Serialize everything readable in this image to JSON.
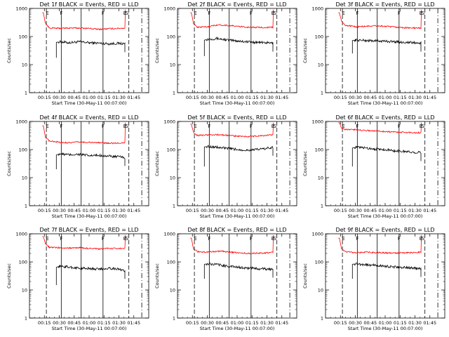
{
  "figure": {
    "x_tick_labels": [
      "00:15",
      "00:30",
      "00:45",
      "01:00",
      "01:15",
      "01:30",
      "01:45"
    ],
    "y_tick_labels": [
      "1",
      "10",
      "100",
      "1000"
    ],
    "ylabel": "Counts/sec",
    "xlabel": "Start Time (30-May-11 00:07:00)",
    "colors": {
      "events": "#000000",
      "lld": "#ff0000",
      "axes": "#000000",
      "background": "#ffffff"
    }
  },
  "chart_data": [
    {
      "type": "line",
      "title": "Det 1f BLACK = Events, RED = LLD",
      "xlabel": "Start Time (30-May-11 00:07:00)",
      "ylabel": "Counts/sec",
      "yscale": "log",
      "ylim": [
        1,
        1000
      ],
      "events_start": 27,
      "lld_start": 13,
      "end": 96,
      "series": [
        {
          "name": "Events",
          "color": "#000000",
          "x": [
            20,
            25,
            30,
            40,
            50,
            60,
            70,
            80,
            90,
            95
          ],
          "y": [
            35,
            60,
            65,
            60,
            65,
            60,
            58,
            55,
            57,
            55
          ]
        },
        {
          "name": "LLD",
          "color": "#ff0000",
          "x": [
            14,
            16,
            20,
            30,
            40,
            50,
            60,
            70,
            80,
            90,
            95
          ],
          "y": [
            700,
            300,
            200,
            195,
            200,
            200,
            195,
            180,
            190,
            195,
            200
          ]
        }
      ],
      "vlines_solid": [
        32,
        52,
        74
      ],
      "vlines_dashed": [
        17,
        100
      ],
      "vlines_dashdot": [
        113
      ],
      "letter_markers": [
        {
          "x": 18,
          "text": "E"
        },
        {
          "x": 32,
          "text": "F"
        },
        {
          "x": 74,
          "text": "F"
        },
        {
          "x": 96,
          "text": "E"
        },
        {
          "x": 98,
          "text": "S"
        }
      ]
    },
    {
      "type": "line",
      "title": "Det 2f BLACK = Events, RED = LLD",
      "xlabel": "Start Time (30-May-11 00:07:00)",
      "ylabel": "Counts/sec",
      "yscale": "log",
      "ylim": [
        1,
        1000
      ],
      "events_start": 27,
      "lld_start": 13,
      "end": 96,
      "series": [
        {
          "name": "Events",
          "color": "#000000",
          "x": [
            20,
            25,
            30,
            40,
            50,
            60,
            70,
            80,
            90,
            95
          ],
          "y": [
            40,
            70,
            80,
            85,
            75,
            70,
            65,
            62,
            60,
            58
          ]
        },
        {
          "name": "LLD",
          "color": "#ff0000",
          "x": [
            14,
            16,
            20,
            30,
            40,
            50,
            60,
            70,
            80,
            90,
            95
          ],
          "y": [
            700,
            300,
            215,
            220,
            260,
            250,
            230,
            215,
            210,
            210,
            210
          ]
        }
      ],
      "vlines_solid": [
        32,
        52,
        74
      ],
      "vlines_dashed": [
        17,
        100
      ],
      "vlines_dashdot": [
        113
      ],
      "letter_markers": [
        {
          "x": 18,
          "text": "E"
        },
        {
          "x": 32,
          "text": "F"
        },
        {
          "x": 74,
          "text": "F"
        },
        {
          "x": 96,
          "text": "E"
        },
        {
          "x": 98,
          "text": "S"
        }
      ]
    },
    {
      "type": "line",
      "title": "Det 3f BLACK = Events, RED = LLD",
      "xlabel": "Start Time (30-May-11 00:07:00)",
      "ylabel": "Counts/sec",
      "yscale": "log",
      "ylim": [
        1,
        1000
      ],
      "events_start": 27,
      "lld_start": 13,
      "end": 96,
      "series": [
        {
          "name": "Events",
          "color": "#000000",
          "x": [
            20,
            25,
            30,
            40,
            50,
            60,
            70,
            80,
            90,
            95
          ],
          "y": [
            50,
            70,
            75,
            72,
            70,
            68,
            65,
            62,
            60,
            58
          ]
        },
        {
          "name": "LLD",
          "color": "#ff0000",
          "x": [
            14,
            16,
            20,
            30,
            40,
            50,
            60,
            70,
            80,
            90,
            95
          ],
          "y": [
            700,
            350,
            250,
            220,
            230,
            240,
            230,
            215,
            205,
            200,
            200
          ]
        }
      ],
      "vlines_solid": [
        32,
        52,
        74
      ],
      "vlines_dashed": [
        17,
        100
      ],
      "vlines_dashdot": [
        113
      ],
      "letter_markers": [
        {
          "x": 18,
          "text": "E"
        },
        {
          "x": 32,
          "text": "F"
        },
        {
          "x": 74,
          "text": "F"
        },
        {
          "x": 96,
          "text": "E"
        },
        {
          "x": 98,
          "text": "S"
        }
      ]
    },
    {
      "type": "line",
      "title": "Det 4f BLACK = Events, RED = LLD",
      "xlabel": "Start Time (30-May-11 00:07:00)",
      "ylabel": "Counts/sec",
      "yscale": "log",
      "ylim": [
        1,
        1000
      ],
      "events_start": 27,
      "lld_start": 13,
      "end": 96,
      "series": [
        {
          "name": "Events",
          "color": "#000000",
          "x": [
            20,
            25,
            30,
            40,
            50,
            60,
            70,
            80,
            90,
            95
          ],
          "y": [
            40,
            60,
            70,
            65,
            68,
            60,
            62,
            58,
            55,
            52
          ]
        },
        {
          "name": "LLD",
          "color": "#ff0000",
          "x": [
            14,
            16,
            20,
            30,
            40,
            50,
            60,
            70,
            80,
            90,
            95
          ],
          "y": [
            700,
            280,
            200,
            180,
            175,
            185,
            180,
            175,
            170,
            170,
            175
          ]
        }
      ],
      "vlines_solid": [
        32,
        52,
        74
      ],
      "vlines_dashed": [
        17,
        100
      ],
      "vlines_dashdot": [
        113
      ],
      "letter_markers": [
        {
          "x": 18,
          "text": "E"
        },
        {
          "x": 32,
          "text": "F"
        },
        {
          "x": 74,
          "text": "F"
        },
        {
          "x": 96,
          "text": "E"
        },
        {
          "x": 98,
          "text": "S"
        }
      ]
    },
    {
      "type": "line",
      "title": "Det 5f BLACK = Events, RED = LLD",
      "xlabel": "Start Time (30-May-11 00:07:00)",
      "ylabel": "Counts/sec",
      "yscale": "log",
      "ylim": [
        1,
        1000
      ],
      "events_start": 27,
      "lld_start": 13,
      "end": 96,
      "series": [
        {
          "name": "Events",
          "color": "#000000",
          "x": [
            20,
            25,
            30,
            40,
            50,
            60,
            70,
            80,
            90,
            95
          ],
          "y": [
            50,
            120,
            130,
            120,
            110,
            100,
            95,
            100,
            110,
            120
          ]
        },
        {
          "name": "LLD",
          "color": "#ff0000",
          "x": [
            14,
            16,
            20,
            30,
            40,
            50,
            60,
            70,
            80,
            90,
            95
          ],
          "y": [
            800,
            400,
            320,
            330,
            340,
            320,
            300,
            290,
            300,
            320,
            330
          ]
        }
      ],
      "vlines_solid": [
        32,
        52,
        74
      ],
      "vlines_dashed": [
        17,
        100
      ],
      "vlines_dashdot": [
        113
      ],
      "letter_markers": [
        {
          "x": 18,
          "text": "E"
        },
        {
          "x": 32,
          "text": "F"
        },
        {
          "x": 74,
          "text": "F"
        },
        {
          "x": 96,
          "text": "E"
        },
        {
          "x": 98,
          "text": "S"
        }
      ]
    },
    {
      "type": "line",
      "title": "Det 6f BLACK = Events, RED = LLD",
      "xlabel": "Start Time (30-May-11 00:07:00)",
      "ylabel": "Counts/sec",
      "yscale": "log",
      "ylim": [
        1,
        1000
      ],
      "events_start": 27,
      "lld_start": 13,
      "end": 96,
      "series": [
        {
          "name": "Events",
          "color": "#000000",
          "x": [
            20,
            25,
            30,
            40,
            50,
            60,
            70,
            80,
            90,
            95
          ],
          "y": [
            50,
            110,
            120,
            115,
            105,
            100,
            90,
            85,
            80,
            78
          ]
        },
        {
          "name": "LLD",
          "color": "#ff0000",
          "x": [
            14,
            16,
            20,
            30,
            40,
            50,
            60,
            70,
            80,
            90,
            95
          ],
          "y": [
            900,
            600,
            520,
            510,
            480,
            460,
            440,
            420,
            410,
            400,
            400
          ]
        }
      ],
      "vlines_solid": [
        32,
        52,
        74
      ],
      "vlines_dashed": [
        17,
        100
      ],
      "vlines_dashdot": [
        113
      ],
      "letter_markers": [
        {
          "x": 18,
          "text": "E"
        },
        {
          "x": 32,
          "text": "F"
        },
        {
          "x": 74,
          "text": "F"
        },
        {
          "x": 96,
          "text": "E"
        },
        {
          "x": 98,
          "text": "S"
        }
      ]
    },
    {
      "type": "line",
      "title": "Det 7f BLACK = Events, RED = LLD",
      "xlabel": "Start Time (30-May-11 00:07:00)",
      "ylabel": "Counts/sec",
      "yscale": "log",
      "ylim": [
        1,
        1000
      ],
      "events_start": 27,
      "lld_start": 13,
      "end": 96,
      "series": [
        {
          "name": "Events",
          "color": "#000000",
          "x": [
            20,
            25,
            30,
            40,
            50,
            60,
            70,
            80,
            90,
            95
          ],
          "y": [
            30,
            60,
            70,
            65,
            60,
            58,
            55,
            60,
            55,
            50
          ]
        },
        {
          "name": "LLD",
          "color": "#ff0000",
          "x": [
            14,
            16,
            20,
            30,
            40,
            50,
            60,
            70,
            80,
            90,
            95
          ],
          "y": [
            800,
            450,
            330,
            320,
            310,
            320,
            300,
            290,
            300,
            300,
            310
          ]
        }
      ],
      "vlines_solid": [
        32,
        52,
        74
      ],
      "vlines_dashed": [
        17,
        100
      ],
      "vlines_dashdot": [
        113
      ],
      "letter_markers": [
        {
          "x": 18,
          "text": "E"
        },
        {
          "x": 32,
          "text": "F"
        },
        {
          "x": 74,
          "text": "F"
        },
        {
          "x": 96,
          "text": "E"
        },
        {
          "x": 98,
          "text": "S"
        }
      ]
    },
    {
      "type": "line",
      "title": "Det 8f BLACK = Events, RED = LLD",
      "xlabel": "Start Time (30-May-11 00:07:00)",
      "ylabel": "Counts/sec",
      "yscale": "log",
      "ylim": [
        1,
        1000
      ],
      "events_start": 27,
      "lld_start": 13,
      "end": 96,
      "series": [
        {
          "name": "Events",
          "color": "#000000",
          "x": [
            20,
            25,
            30,
            40,
            50,
            60,
            70,
            80,
            90,
            95
          ],
          "y": [
            50,
            80,
            85,
            80,
            70,
            65,
            60,
            58,
            55,
            55
          ]
        },
        {
          "name": "LLD",
          "color": "#ff0000",
          "x": [
            14,
            16,
            20,
            30,
            40,
            50,
            60,
            70,
            80,
            90,
            95
          ],
          "y": [
            700,
            300,
            230,
            220,
            240,
            230,
            210,
            200,
            205,
            210,
            215
          ]
        }
      ],
      "vlines_solid": [
        32,
        52,
        74
      ],
      "vlines_dashed": [
        17,
        100
      ],
      "vlines_dashdot": [
        113
      ],
      "letter_markers": [
        {
          "x": 18,
          "text": "E"
        },
        {
          "x": 32,
          "text": "F"
        },
        {
          "x": 74,
          "text": "F"
        },
        {
          "x": 96,
          "text": "E"
        },
        {
          "x": 98,
          "text": "S"
        }
      ]
    },
    {
      "type": "line",
      "title": "Det 9f BLACK = Events, RED = LLD",
      "xlabel": "Start Time (30-May-11 00:07:00)",
      "ylabel": "Counts/sec",
      "yscale": "log",
      "ylim": [
        1,
        1000
      ],
      "events_start": 27,
      "lld_start": 13,
      "end": 96,
      "series": [
        {
          "name": "Events",
          "color": "#000000",
          "x": [
            20,
            25,
            30,
            40,
            50,
            60,
            70,
            80,
            90,
            95
          ],
          "y": [
            50,
            80,
            85,
            80,
            75,
            70,
            65,
            62,
            60,
            58
          ]
        },
        {
          "name": "LLD",
          "color": "#ff0000",
          "x": [
            14,
            16,
            20,
            30,
            40,
            50,
            60,
            70,
            80,
            90,
            95
          ],
          "y": [
            700,
            300,
            230,
            215,
            220,
            215,
            210,
            205,
            210,
            215,
            220
          ]
        }
      ],
      "vlines_solid": [
        32,
        52,
        74
      ],
      "vlines_dashed": [
        17,
        100
      ],
      "vlines_dashdot": [
        113
      ],
      "letter_markers": [
        {
          "x": 18,
          "text": "E"
        },
        {
          "x": 32,
          "text": "F"
        },
        {
          "x": 74,
          "text": "F"
        },
        {
          "x": 96,
          "text": "E"
        },
        {
          "x": 98,
          "text": "S"
        }
      ]
    }
  ]
}
